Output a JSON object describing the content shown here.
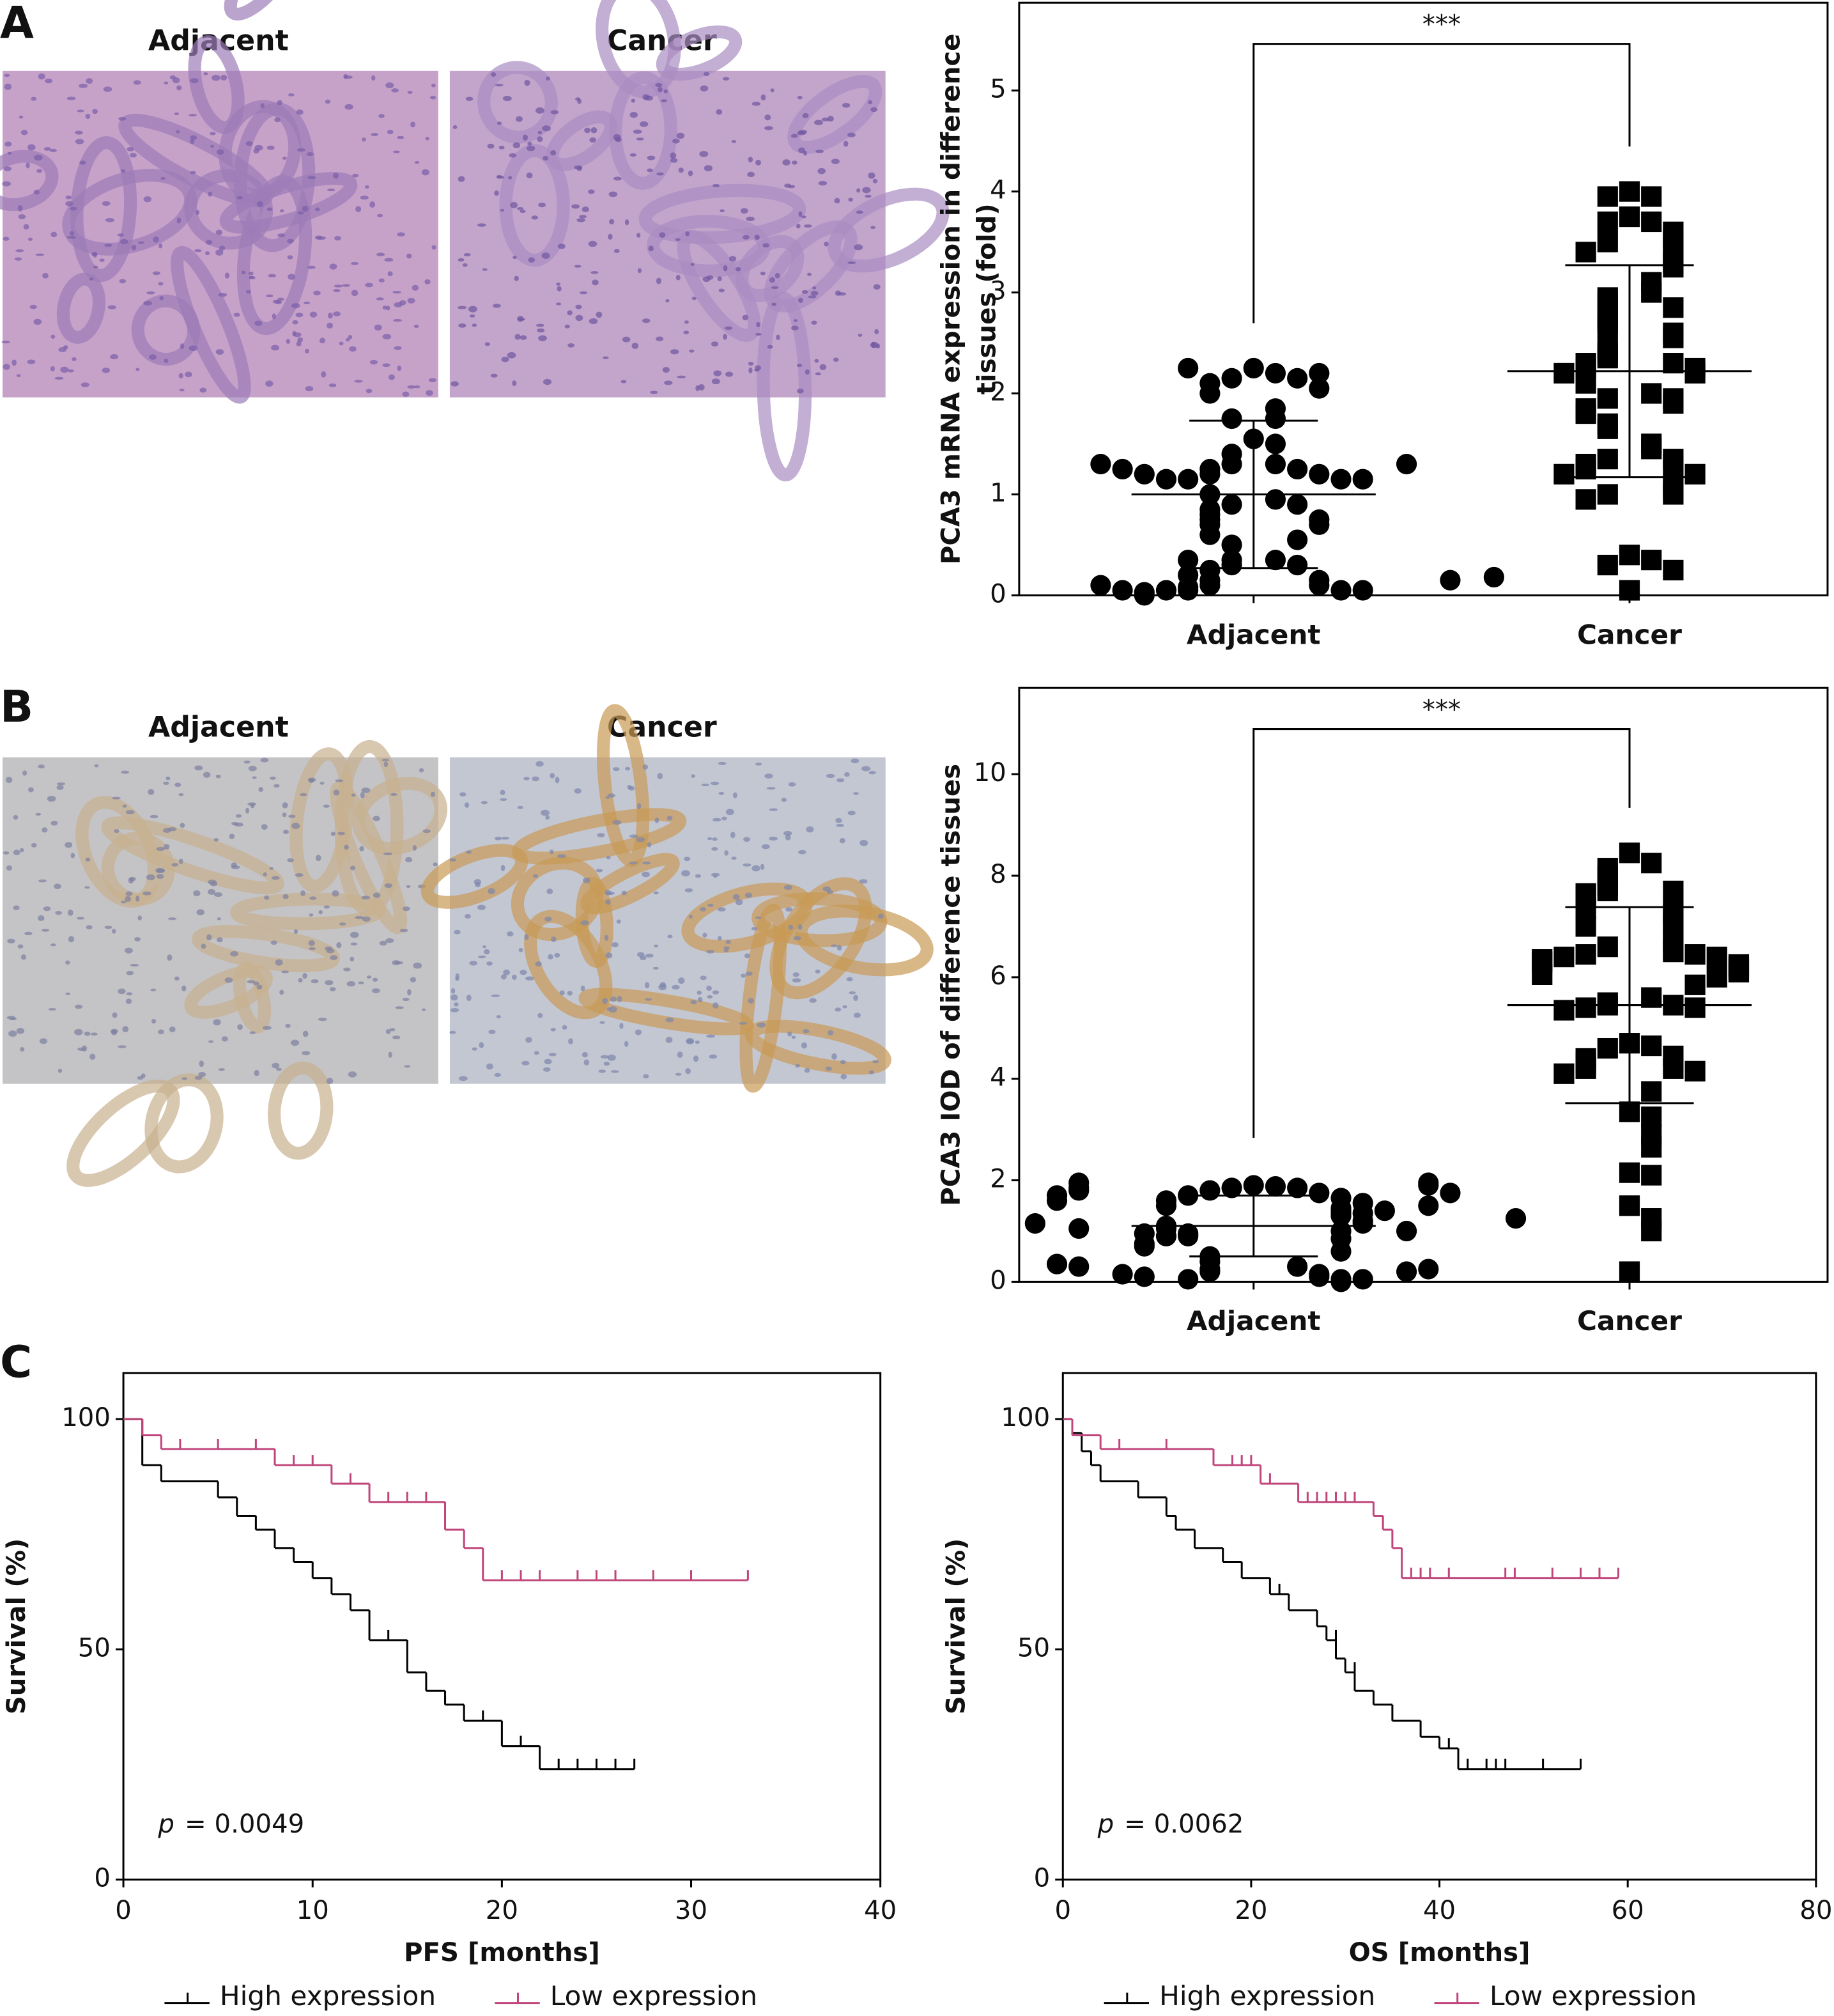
{
  "panel_labels": [
    "A",
    "B",
    "C"
  ],
  "images": [
    {
      "caption": "Adjacent"
    },
    {
      "caption": "Cancer"
    },
    {
      "caption": "Adjacent"
    },
    {
      "caption": "Cancer"
    }
  ],
  "chart_data": [
    {
      "type": "scatter",
      "ylabel": [
        "PCA3 mRNA expression in difference",
        "tissues (fold)"
      ],
      "categories": [
        "Adjacent",
        "Cancer"
      ],
      "ylim": [
        0,
        5.87
      ],
      "yticks": [
        0,
        1,
        2,
        3,
        4,
        5
      ],
      "significance": "***",
      "series": [
        {
          "marker": "circle",
          "color": "#000000",
          "mean": 1.0,
          "sd": 0.73,
          "values": [
            2.25,
            2.2,
            2.15,
            2.15,
            2.1,
            2.2,
            2.25,
            2.05,
            2.0,
            1.85,
            1.75,
            1.75,
            1.55,
            1.5,
            1.4,
            1.3,
            1.3,
            1.25,
            1.25,
            1.2,
            1.2,
            1.15,
            1.15,
            1.15,
            1.15,
            1.2,
            1.25,
            1.3,
            1.3,
            1.0,
            0.95,
            0.9,
            0.9,
            0.85,
            0.8,
            0.75,
            0.75,
            0.7,
            0.7,
            0.6,
            0.55,
            0.5,
            0.35,
            0.35,
            0.3,
            0.3,
            0.25,
            0.35,
            0.2,
            0.15,
            0.15,
            0.1,
            0.1,
            0.08,
            0.05,
            0.05,
            0.05,
            0.05,
            0.03,
            0.0,
            0.05,
            0.1,
            0.15,
            0.18
          ]
        },
        {
          "marker": "square",
          "color": "#000000",
          "mean": 2.22,
          "sd": 1.05,
          "values": [
            4.0,
            3.95,
            3.95,
            3.75,
            3.7,
            3.7,
            3.6,
            3.55,
            3.5,
            3.45,
            3.4,
            3.4,
            3.3,
            3.25,
            3.1,
            3.0,
            2.95,
            2.9,
            2.85,
            2.75,
            2.7,
            2.65,
            2.6,
            2.55,
            2.45,
            2.4,
            2.35,
            2.3,
            2.3,
            2.25,
            2.25,
            2.2,
            2.2,
            2.1,
            2.0,
            1.95,
            1.95,
            1.9,
            1.85,
            1.8,
            1.7,
            1.65,
            1.5,
            1.45,
            1.35,
            1.35,
            1.3,
            1.3,
            1.25,
            1.2,
            1.2,
            1.1,
            1.05,
            1.0,
            1.0,
            0.95,
            0.4,
            0.35,
            0.3,
            0.25,
            0.05
          ]
        }
      ]
    },
    {
      "type": "scatter",
      "ylabel": [
        "PCA3 IOD of difference tissues"
      ],
      "categories": [
        "Adjacent",
        "Cancer"
      ],
      "ylim": [
        0,
        11.7
      ],
      "yticks": [
        0,
        2,
        4,
        6,
        8,
        10
      ],
      "significance": "***",
      "series": [
        {
          "marker": "circle",
          "color": "#000000",
          "mean": 1.1,
          "sd": 0.6,
          "values": [
            1.9,
            1.88,
            1.85,
            1.85,
            1.8,
            1.75,
            1.7,
            1.65,
            1.6,
            1.55,
            1.5,
            1.45,
            1.4,
            1.35,
            1.3,
            1.35,
            1.4,
            1.5,
            1.6,
            1.7,
            1.75,
            1.8,
            1.85,
            1.9,
            1.95,
            1.95,
            1.2,
            1.15,
            1.1,
            1.05,
            1.0,
            0.95,
            0.9,
            0.85,
            0.9,
            0.95,
            1.0,
            1.05,
            1.15,
            1.25,
            0.75,
            0.7,
            0.6,
            0.5,
            0.4,
            0.3,
            0.25,
            0.2,
            0.15,
            0.1,
            0.05,
            0.05,
            0.0,
            0.05,
            0.1,
            0.15,
            0.2,
            0.25,
            0.3,
            0.35
          ]
        },
        {
          "marker": "square",
          "color": "#000000",
          "mean": 5.45,
          "sd": 1.93,
          "values": [
            8.45,
            8.25,
            8.15,
            8.0,
            7.8,
            7.7,
            7.7,
            7.65,
            7.6,
            7.35,
            7.3,
            7.25,
            7.05,
            7.0,
            6.9,
            6.7,
            6.6,
            6.55,
            6.5,
            6.45,
            6.45,
            6.4,
            6.4,
            6.35,
            6.3,
            6.25,
            6.2,
            6.15,
            6.1,
            6.05,
            6.0,
            5.85,
            5.6,
            5.5,
            5.45,
            5.45,
            5.4,
            5.4,
            5.35,
            4.7,
            4.65,
            4.6,
            4.45,
            4.4,
            4.3,
            4.2,
            4.2,
            4.15,
            4.1,
            3.75,
            3.35,
            3.25,
            2.9,
            2.65,
            2.15,
            2.1,
            1.5,
            1.25,
            1.0,
            0.2
          ]
        }
      ]
    },
    {
      "type": "survival",
      "xlabel": "PFS [months]",
      "ylabel": "Survival (%)",
      "xlim": [
        0,
        40
      ],
      "xticks": [
        0,
        10,
        20,
        30,
        40
      ],
      "ylim": [
        0,
        110
      ],
      "yticks": [
        0,
        50,
        100
      ],
      "annotation": {
        "symbol": "p",
        "text": "= 0.0049"
      },
      "series": [
        {
          "name": "High expression",
          "color": "#000000",
          "x": [
            0,
            1,
            2,
            5,
            6,
            7,
            8,
            9,
            10,
            11,
            12,
            13,
            15,
            16,
            17,
            18,
            20,
            22,
            27
          ],
          "values": [
            100,
            90,
            86.5,
            83,
            79,
            76,
            72,
            69,
            65.5,
            62,
            58.5,
            52,
            45,
            41,
            38,
            34.5,
            29,
            24,
            24
          ],
          "censor_x": [
            14,
            19,
            21,
            23,
            24,
            25,
            26,
            27
          ],
          "censor_values": [
            52,
            34.5,
            29,
            24,
            24,
            24,
            24,
            24
          ]
        },
        {
          "name": "Low expression",
          "color": "#c0457a",
          "x": [
            0,
            1,
            2,
            8,
            11,
            13,
            17,
            18,
            19,
            33
          ],
          "values": [
            100,
            96.5,
            93.5,
            90,
            86,
            82,
            76,
            72,
            65,
            65
          ],
          "censor_x": [
            3,
            5,
            7,
            9,
            10,
            12,
            14,
            15,
            16,
            20,
            21,
            22,
            24,
            25,
            26,
            28,
            30,
            33
          ],
          "censor_values": [
            93.5,
            93.5,
            93.5,
            90,
            90,
            86,
            82,
            82,
            82,
            65,
            65,
            65,
            65,
            65,
            65,
            65,
            65,
            65
          ]
        }
      ]
    },
    {
      "type": "survival",
      "xlabel": "OS [months]",
      "ylabel": "Survival (%)",
      "xlim": [
        0,
        80
      ],
      "xticks": [
        0,
        20,
        40,
        60,
        80
      ],
      "ylim": [
        0,
        110
      ],
      "yticks": [
        0,
        50,
        100
      ],
      "annotation": {
        "symbol": "p",
        "text": "= 0.0062"
      },
      "series": [
        {
          "name": "High expression",
          "color": "#000000",
          "x": [
            0,
            1,
            2,
            3,
            4,
            8,
            11,
            12,
            14,
            17,
            19,
            22,
            24,
            27,
            28,
            29,
            30,
            31,
            33,
            35,
            38,
            40,
            42,
            55
          ],
          "values": [
            100,
            97,
            93,
            90,
            86.5,
            83,
            79,
            76,
            72,
            69,
            65.5,
            62,
            58.5,
            55,
            52,
            48,
            45,
            41,
            38,
            34.5,
            31,
            28.5,
            24,
            24
          ],
          "censor_x": [
            23,
            29,
            31,
            41,
            43,
            45,
            46,
            47,
            51,
            55
          ],
          "censor_values": [
            62,
            52,
            45,
            28.5,
            24,
            24,
            24,
            24,
            24,
            24
          ]
        },
        {
          "name": "Low expression",
          "color": "#c0457a",
          "x": [
            0,
            1,
            4,
            16,
            21,
            25,
            33,
            34,
            35,
            36,
            59
          ],
          "values": [
            100,
            96.5,
            93.5,
            90,
            86,
            82,
            79,
            76,
            72,
            65.5,
            65.5
          ],
          "censor_x": [
            6,
            11,
            18,
            19,
            20,
            22,
            26,
            27,
            28,
            29,
            30,
            31,
            37,
            38,
            39,
            41,
            47,
            48,
            52,
            55,
            57,
            59
          ],
          "censor_values": [
            93.5,
            93.5,
            90,
            90,
            90,
            86,
            82,
            82,
            82,
            82,
            82,
            82,
            65.5,
            65.5,
            65.5,
            65.5,
            65.5,
            65.5,
            65.5,
            65.5,
            65.5,
            65.5
          ]
        }
      ]
    }
  ]
}
